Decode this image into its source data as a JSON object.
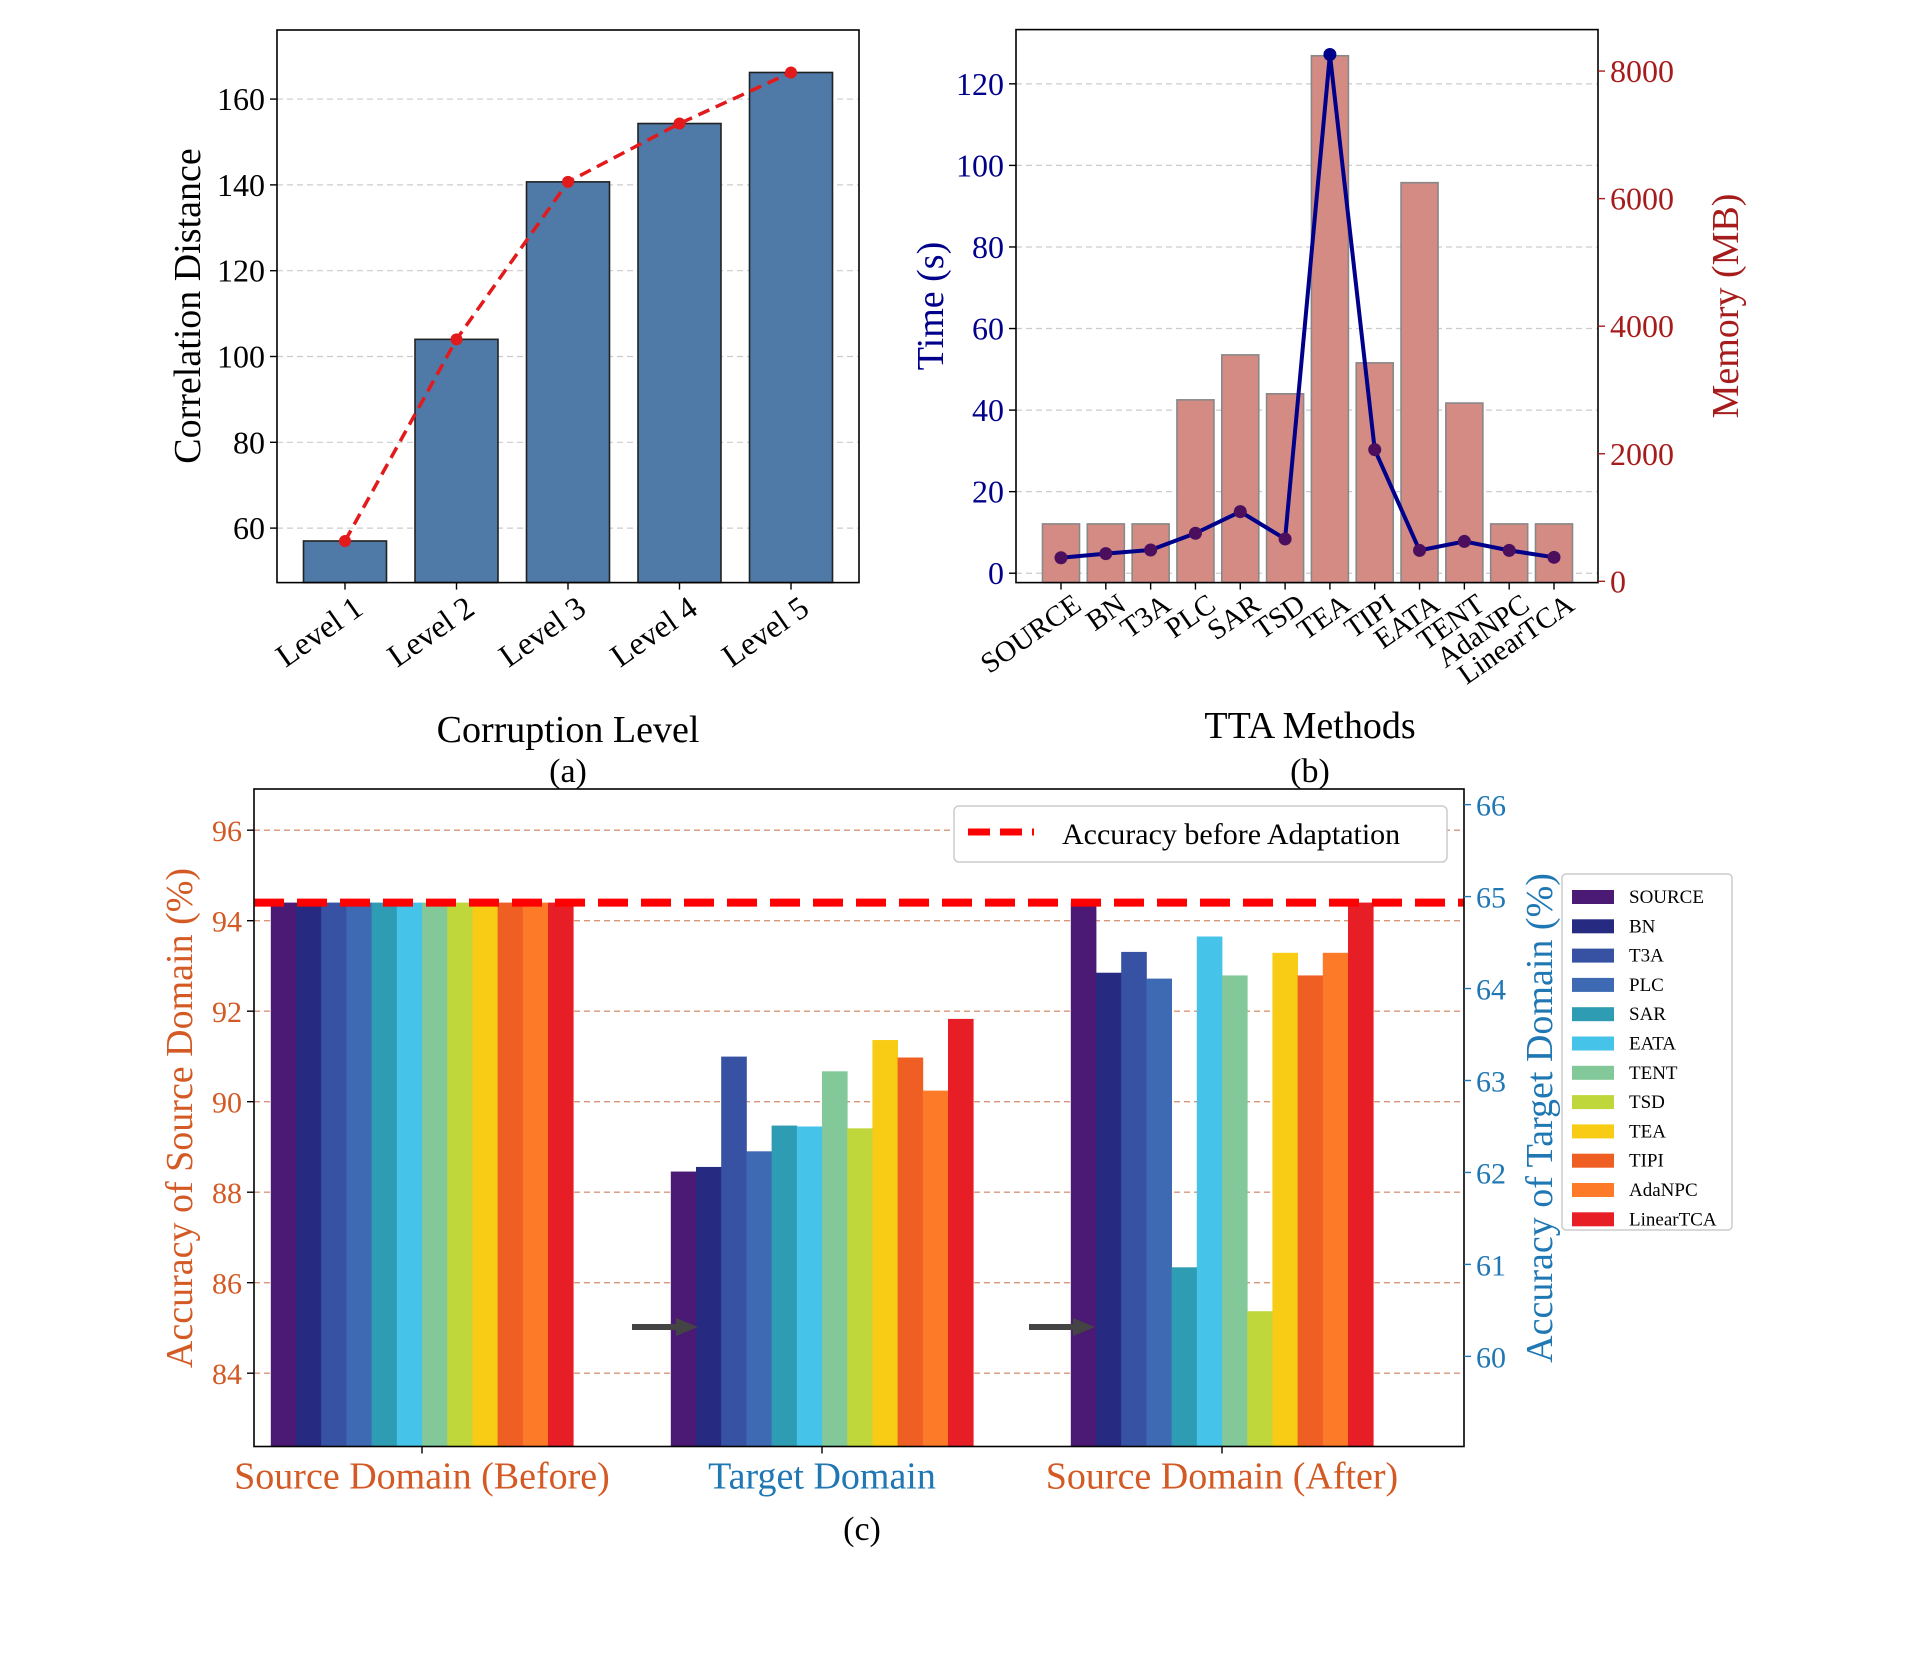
{
  "chart_data": [
    {
      "id": "a",
      "type": "bar",
      "caption": "(a)",
      "title": "",
      "xlabel": "Corruption Level",
      "ylabel": "Correlation Distance",
      "categories": [
        "Level 1",
        "Level 2",
        "Level 3",
        "Level 4",
        "Level 5"
      ],
      "values": [
        57.0,
        104.0,
        140.7,
        154.3,
        166.2
      ],
      "overlay_line": {
        "style": "dashed",
        "color": "#e31a1c",
        "values": [
          57.0,
          104.0,
          140.7,
          154.3,
          166.2
        ]
      },
      "ylim": [
        47.3,
        176.1
      ],
      "yticks": [
        60,
        80,
        100,
        120,
        140,
        160
      ],
      "grid": "y-dashed",
      "bar_color": "#4f79a7",
      "legend": "none"
    },
    {
      "id": "b",
      "type": "bar",
      "caption": "(b)",
      "title": "",
      "xlabel": "TTA Methods",
      "ylabel": "Time (s)",
      "ylabel_right": "Memory (MB)",
      "categories": [
        "SOURCE",
        "BN",
        "T3A",
        "PLC",
        "SAR",
        "TSD",
        "TEA",
        "TIPI",
        "EATA",
        "TENT",
        "AdaNPC",
        "LinearTCA"
      ],
      "series": [
        {
          "name": "Memory (MB)",
          "type": "bar",
          "axis": "right",
          "color": "#d48b84",
          "values": [
            900,
            900,
            900,
            2845,
            3550,
            2940,
            8240,
            3425,
            6250,
            2795,
            900,
            900
          ]
        },
        {
          "name": "Time (s)",
          "type": "line",
          "axis": "left",
          "color": "#00008b",
          "marker_color": "#4b0f5e",
          "values": [
            3.8,
            4.8,
            5.7,
            9.8,
            15.1,
            8.4,
            127.2,
            30.3,
            5.6,
            7.8,
            5.6,
            3.9
          ]
        }
      ],
      "ylim": [
        -2.3,
        133.3
      ],
      "yticks": [
        0,
        20,
        40,
        60,
        80,
        100,
        120
      ],
      "ylim_right": [
        -20,
        8650
      ],
      "yticks_right": [
        0,
        2000,
        4000,
        6000,
        8000
      ],
      "left_axis_color": "#00008b",
      "right_axis_color": "#a61c1c",
      "grid": "y-dashed",
      "legend": "none"
    },
    {
      "id": "c",
      "type": "bar",
      "caption": "(c)",
      "title": "",
      "xlabel": "",
      "ylabel": "Accuracy of Source Domain (%)",
      "ylabel_right": "Accuracy of Target Domain (%)",
      "groups": [
        {
          "label": "Source Domain (Before)",
          "axis": "left",
          "label_color": "#d35a24"
        },
        {
          "label": "Target Domain",
          "axis": "right",
          "label_color": "#1f77b4"
        },
        {
          "label": "Source Domain (After)",
          "axis": "left",
          "label_color": "#d35a24"
        }
      ],
      "series": [
        {
          "name": "SOURCE",
          "color": "#4a1a74",
          "values": [
            94.4,
            62.01,
            94.4
          ]
        },
        {
          "name": "BN",
          "color": "#262a80",
          "values": [
            94.4,
            62.06,
            92.85
          ]
        },
        {
          "name": "T3A",
          "color": "#3752a2",
          "values": [
            94.4,
            63.26,
            93.31
          ]
        },
        {
          "name": "PLC",
          "color": "#3d6ab2",
          "values": [
            94.4,
            62.23,
            92.72
          ]
        },
        {
          "name": "SAR",
          "color": "#2e9db4",
          "values": [
            94.4,
            62.51,
            86.34
          ]
        },
        {
          "name": "EATA",
          "color": "#46c3e8",
          "values": [
            94.4,
            62.5,
            93.65
          ]
        },
        {
          "name": "TENT",
          "color": "#82c898",
          "values": [
            94.4,
            63.1,
            92.79
          ]
        },
        {
          "name": "TSD",
          "color": "#bfd73a",
          "values": [
            94.4,
            62.48,
            85.37
          ]
        },
        {
          "name": "TEA",
          "color": "#f8cc14",
          "values": [
            94.4,
            63.44,
            93.29
          ]
        },
        {
          "name": "TIPI",
          "color": "#ef5e22",
          "values": [
            94.4,
            63.25,
            92.79
          ]
        },
        {
          "name": "AdaNPC",
          "color": "#fd7a28",
          "values": [
            94.4,
            62.89,
            93.29
          ]
        },
        {
          "name": "LinearTCA",
          "color": "#e81e26",
          "values": [
            94.4,
            63.67,
            94.4
          ]
        }
      ],
      "reference_line": {
        "label": "Accuracy before Adaptation",
        "value": 94.4,
        "axis": "left",
        "color": "#ff0000",
        "style": "dashed"
      },
      "ylim": [
        82.38,
        96.91
      ],
      "yticks": [
        84,
        86,
        88,
        90,
        92,
        94,
        96
      ],
      "ylim_right": [
        59.02,
        66.17
      ],
      "yticks_right": [
        60,
        61,
        62,
        63,
        64,
        65,
        66
      ],
      "left_axis_color": "#d35a24",
      "right_axis_color": "#1f77b4",
      "grid": "y-dashed",
      "legend": "right-outside",
      "legend_top": "top-right",
      "annotations": [
        "arrow Before→Target",
        "arrow Target→After"
      ]
    }
  ]
}
